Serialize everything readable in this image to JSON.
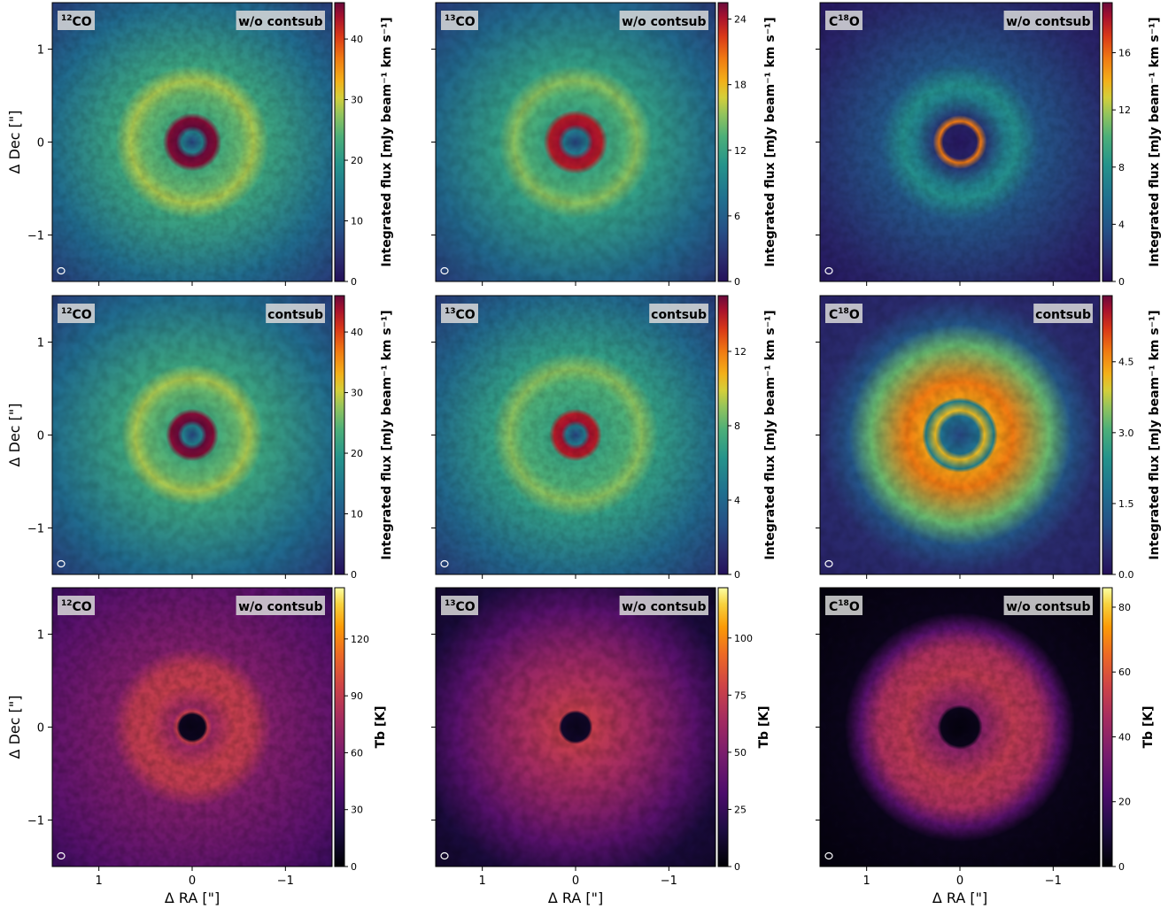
{
  "chart_data": {
    "type": "heatmap",
    "xlabel": "Δ RA [\"]",
    "ylabel": "Δ Dec [\"]",
    "xticks": [
      1,
      0,
      -1
    ],
    "yticks": [
      1,
      0,
      -1
    ],
    "xlim": [
      1.5,
      -1.5
    ],
    "ylim": [
      -1.5,
      1.5
    ],
    "rows": [
      {
        "colorbar_label": "Integrated flux [mJy beam⁻¹ km s⁻¹]",
        "panels": [
          {
            "molecule_base": "CO",
            "molecule_sup": "12",
            "sup_position": "prefix",
            "tag": "w/o contsub",
            "colormap": "viridis-magma",
            "vmax": 46,
            "cb_ticks": [
              "0",
              "10",
              "20",
              "30",
              "40"
            ],
            "cb_tick_values": [
              0,
              10,
              20,
              30,
              40
            ],
            "structure": {
              "inner_ring_radius": 0.2,
              "outer_ring_radius": 0.65,
              "central_hole": true
            }
          },
          {
            "molecule_base": "CO",
            "molecule_sup": "13",
            "sup_position": "prefix",
            "tag": "w/o contsub",
            "colormap": "viridis-magma",
            "vmax": 25.5,
            "cb_ticks": [
              "0",
              "6",
              "12",
              "18",
              "24"
            ],
            "cb_tick_values": [
              0,
              6,
              12,
              18,
              24
            ],
            "structure": {
              "inner_ring_radius": 0.22,
              "outer_ring_radius": 0.65,
              "central_hole": true
            }
          },
          {
            "molecule_base": "C",
            "molecule_sup": "18",
            "molecule_tail": "O",
            "sup_position": "infix",
            "tag": "w/o contsub",
            "colormap": "viridis-magma",
            "vmax": 19.5,
            "cb_ticks": [
              "0",
              "4",
              "8",
              "12",
              "16"
            ],
            "cb_tick_values": [
              0,
              4,
              8,
              12,
              16
            ],
            "structure": {
              "inner_ring_radius": 0.22,
              "outer_ring_radius": 0.6,
              "central_hole": true
            }
          }
        ]
      },
      {
        "colorbar_label": "Integrated flux [mJy beam⁻¹ km s⁻¹]",
        "panels": [
          {
            "molecule_base": "CO",
            "molecule_sup": "12",
            "sup_position": "prefix",
            "tag": "contsub",
            "colormap": "viridis-magma",
            "vmax": 46,
            "cb_ticks": [
              "0",
              "10",
              "20",
              "30",
              "40"
            ],
            "cb_tick_values": [
              0,
              10,
              20,
              30,
              40
            ],
            "structure": {
              "inner_ring_radius": 0.18,
              "outer_ring_radius": 0.6,
              "central_hole": true
            }
          },
          {
            "molecule_base": "CO",
            "molecule_sup": "13",
            "sup_position": "prefix",
            "tag": "contsub",
            "colormap": "viridis-magma",
            "vmax": 15,
            "cb_ticks": [
              "0",
              "4",
              "8",
              "12"
            ],
            "cb_tick_values": [
              0,
              4,
              8,
              12
            ],
            "structure": {
              "inner_ring_radius": 0.18,
              "outer_ring_radius": 0.7,
              "central_hole": true
            }
          },
          {
            "molecule_base": "C",
            "molecule_sup": "18",
            "molecule_tail": "O",
            "sup_position": "infix",
            "tag": "contsub",
            "colormap": "viridis-magma",
            "vmax": 5.9,
            "cb_ticks": [
              "0.0",
              "1.5",
              "3.0",
              "4.5"
            ],
            "cb_tick_values": [
              0,
              1.5,
              3.0,
              4.5
            ],
            "structure": {
              "inner_ring_radius": 0.2,
              "outer_ring_radius": 0.8,
              "central_hole": true
            }
          }
        ]
      },
      {
        "colorbar_label": "Tb [K]",
        "panels": [
          {
            "molecule_base": "CO",
            "molecule_sup": "12",
            "sup_position": "prefix",
            "tag": "w/o contsub",
            "colormap": "inferno",
            "vmax": 147,
            "cb_ticks": [
              "0",
              "30",
              "60",
              "90",
              "120"
            ],
            "cb_tick_values": [
              0,
              30,
              60,
              90,
              120
            ],
            "structure": {
              "inner_ring_radius": 0.15,
              "outer_ring_radius": 0.65,
              "central_hole": true
            }
          },
          {
            "molecule_base": "CO",
            "molecule_sup": "13",
            "sup_position": "prefix",
            "tag": "w/o contsub",
            "colormap": "inferno",
            "vmax": 122,
            "cb_ticks": [
              "0",
              "25",
              "50",
              "75",
              "100"
            ],
            "cb_tick_values": [
              0,
              25,
              50,
              75,
              100
            ],
            "structure": {
              "inner_ring_radius": 0.15,
              "outer_ring_radius": 0.7,
              "central_hole": true
            }
          },
          {
            "molecule_base": "C",
            "molecule_sup": "18",
            "molecule_tail": "O",
            "sup_position": "infix",
            "tag": "w/o contsub",
            "colormap": "inferno",
            "vmax": 86,
            "cb_ticks": [
              "0",
              "20",
              "40",
              "60",
              "80"
            ],
            "cb_tick_values": [
              0,
              20,
              40,
              60,
              80
            ],
            "structure": {
              "inner_ring_radius": 0.2,
              "outer_ring_radius": 0.95,
              "central_hole": true
            }
          }
        ]
      }
    ],
    "beam_marker": "ellipse at bottom-left of every panel",
    "grid": false
  }
}
